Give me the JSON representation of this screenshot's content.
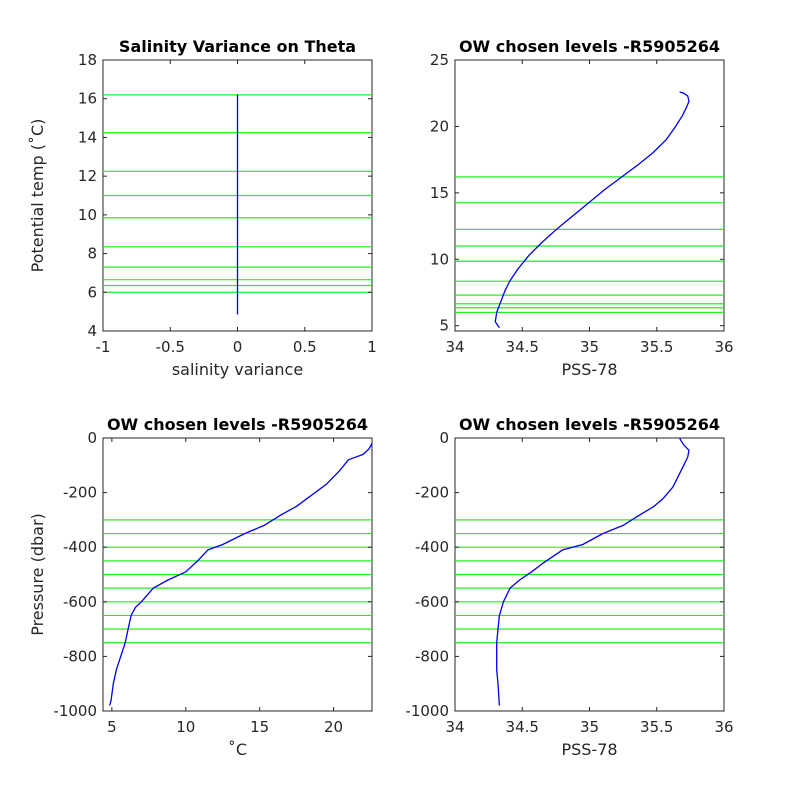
{
  "colors": {
    "profile": "#0000ee",
    "levels": "#22ee22",
    "axes": "#262626"
  },
  "chart_data": [
    {
      "type": "line",
      "title": "Salinity Variance on Theta",
      "xlabel": "salinity variance",
      "ylabel": "Potential temp (˚C)",
      "xlim": [
        -1,
        1
      ],
      "ylim": [
        4,
        18
      ],
      "xticks": [
        "-1",
        "-0.5",
        "0",
        "0.5",
        "1"
      ],
      "yticks": [
        "4",
        "6",
        "8",
        "10",
        "12",
        "14",
        "16",
        "18"
      ],
      "series": [
        {
          "x": [
            0,
            0
          ],
          "y": [
            4.85,
            16.2
          ]
        }
      ],
      "levels": [
        16.2,
        14.25,
        12.25,
        11.0,
        9.85,
        8.35,
        7.3,
        6.65,
        6.35,
        6.0
      ]
    },
    {
      "type": "line",
      "title": "OW chosen levels -R5905264",
      "xlabel": "PSS-78",
      "ylabel": "",
      "xlim": [
        34,
        36
      ],
      "ylim": [
        4.6,
        25
      ],
      "xticks": [
        "34",
        "34.5",
        "35",
        "35.5",
        "36"
      ],
      "yticks": [
        "5",
        "10",
        "15",
        "20",
        "25"
      ],
      "series": [
        {
          "x": [
            34.33,
            34.3,
            34.31,
            34.34,
            34.37,
            34.41,
            34.47,
            34.55,
            34.65,
            34.76,
            34.88,
            35.0,
            35.12,
            35.24,
            35.36,
            35.47,
            35.57,
            35.64,
            35.69,
            35.72,
            35.74,
            35.73,
            35.7,
            35.67
          ],
          "y": [
            4.85,
            5.3,
            6.0,
            6.8,
            7.6,
            8.4,
            9.3,
            10.3,
            11.3,
            12.3,
            13.3,
            14.3,
            15.3,
            16.2,
            17.1,
            18.0,
            19.0,
            20.0,
            20.8,
            21.4,
            21.9,
            22.3,
            22.5,
            22.6
          ]
        }
      ],
      "levels": [
        16.2,
        14.25,
        12.25,
        11.0,
        9.85,
        8.35,
        7.3,
        6.65,
        6.35,
        6.0
      ]
    },
    {
      "type": "line",
      "title": "OW chosen levels -R5905264",
      "xlabel": "˚C",
      "ylabel": "Pressure (dbar)",
      "xlim": [
        4.4,
        22.6
      ],
      "ylim": [
        -1000,
        0
      ],
      "xticks": [
        "5",
        "10",
        "15",
        "20"
      ],
      "yticks": [
        "-1000",
        "-800",
        "-600",
        "-400",
        "-200",
        "0"
      ],
      "series": [
        {
          "x": [
            4.85,
            4.95,
            5.1,
            5.3,
            5.6,
            5.9,
            6.1,
            6.3,
            6.6,
            7.0,
            7.8,
            8.8,
            10.0,
            10.8,
            11.5,
            12.5,
            14.0,
            15.3,
            16.5,
            17.5,
            18.5,
            19.5,
            20.4,
            21.0,
            22.0,
            22.4,
            22.6
          ],
          "y": [
            -980,
            -960,
            -900,
            -850,
            -800,
            -750,
            -700,
            -650,
            -620,
            -600,
            -550,
            -520,
            -490,
            -450,
            -410,
            -390,
            -350,
            -320,
            -280,
            -250,
            -210,
            -170,
            -120,
            -80,
            -60,
            -40,
            -20
          ]
        }
      ],
      "levels": [
        -300,
        -350,
        -400,
        -450,
        -500,
        -550,
        -600,
        -650,
        -700,
        -750
      ]
    },
    {
      "type": "line",
      "title": "OW chosen levels -R5905264",
      "xlabel": "PSS-78",
      "ylabel": "",
      "xlim": [
        34,
        36
      ],
      "ylim": [
        -1000,
        0
      ],
      "xticks": [
        "34",
        "34.5",
        "35",
        "35.5",
        "36"
      ],
      "yticks": [
        "-1000",
        "-800",
        "-600",
        "-400",
        "-200",
        "0"
      ],
      "series": [
        {
          "x": [
            34.33,
            34.32,
            34.31,
            34.31,
            34.31,
            34.32,
            34.33,
            34.36,
            34.41,
            34.48,
            34.57,
            34.65,
            34.8,
            34.95,
            35.1,
            35.25,
            35.38,
            35.48,
            35.55,
            35.62,
            35.66,
            35.7,
            35.73,
            35.74,
            35.7,
            35.68,
            35.67
          ],
          "y": [
            -980,
            -900,
            -850,
            -800,
            -750,
            -700,
            -650,
            -600,
            -550,
            -520,
            -490,
            -460,
            -410,
            -390,
            -350,
            -320,
            -280,
            -250,
            -220,
            -180,
            -140,
            -100,
            -70,
            -45,
            -25,
            -10,
            0
          ]
        }
      ],
      "levels": [
        -300,
        -350,
        -400,
        -450,
        -500,
        -550,
        -600,
        -650,
        -700,
        -750
      ]
    }
  ]
}
